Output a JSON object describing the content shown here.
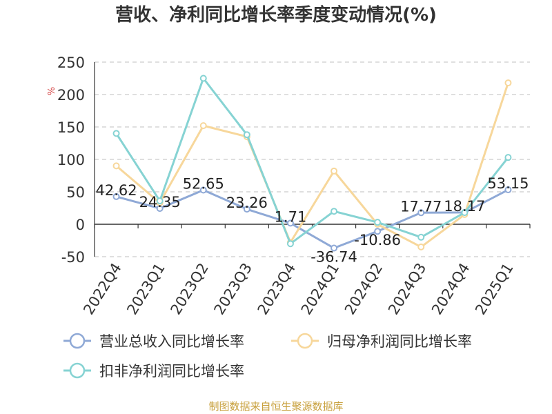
{
  "chart_data": {
    "type": "line",
    "title": "营收、净利同比增长率季度变动情况(%)",
    "ylabel": "%",
    "xlabel": "",
    "categories": [
      "2022Q4",
      "2023Q1",
      "2023Q2",
      "2023Q3",
      "2023Q4",
      "2024Q1",
      "2024Q2",
      "2024Q3",
      "2024Q4",
      "2025Q1"
    ],
    "ylim": [
      -50,
      250
    ],
    "yticks": [
      -50,
      0,
      50,
      100,
      150,
      200,
      250
    ],
    "grid": true,
    "legend_position": "bottom",
    "series": [
      {
        "name": "营业总收入同比增长率",
        "color": "#8fa9d6",
        "values": [
          42.62,
          24.35,
          52.65,
          23.26,
          1.71,
          -36.74,
          -10.86,
          17.77,
          18.17,
          53.15
        ],
        "data_labels": [
          "42.62",
          "24.35",
          "52.65",
          "23.26",
          "1.71",
          "-36.74",
          "-10.86",
          "17.77",
          "18.17",
          "53.15"
        ]
      },
      {
        "name": "归母净利润同比增长率",
        "color": "#f7d79b",
        "values": [
          90,
          33,
          152,
          135,
          -28,
          82,
          0,
          -35,
          15,
          218
        ]
      },
      {
        "name": "扣非净利润同比增长率",
        "color": "#86d3d3",
        "values": [
          140,
          36,
          225,
          138,
          -30,
          20,
          3,
          -20,
          18,
          103
        ]
      }
    ]
  },
  "source_note": "制图数据来自恒生聚源数据库"
}
